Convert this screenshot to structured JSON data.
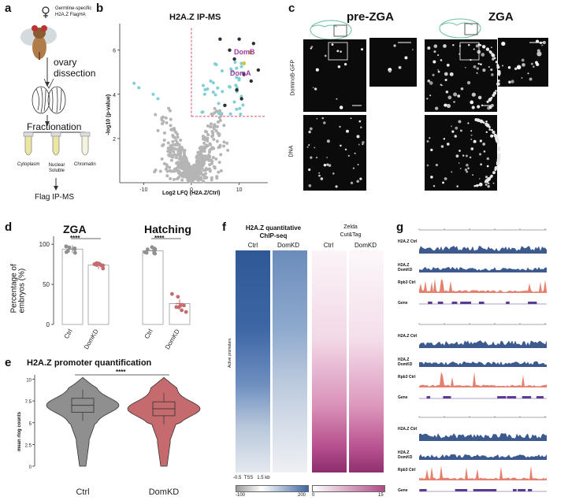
{
  "panels": {
    "a": {
      "label": "a",
      "fly_note_line1": "Germline-specific",
      "fly_note_line2": "H2A.Z FlagHA",
      "step1_line1": "ovary",
      "step1_line2": "dissection",
      "step2": "Fractionation",
      "tube1": "Cytoplasm",
      "tube2_line1": "Nuclear",
      "tube2_line2": "Soluble",
      "tube3": "Chromatin",
      "step3": "Flag IP-MS"
    },
    "b": {
      "label": "b",
      "title": "H2A.Z IP-MS",
      "ylabel": "-log10 (p-value)",
      "xlabel": "Log2 LFQ (H2A.Z/Ctrl)",
      "ann1": "DomB",
      "ann2": "DomA"
    },
    "c": {
      "label": "c",
      "col1": "pre-ZGA",
      "col2": "ZGA",
      "row1": "DominoB-GFP",
      "row2": "DNA"
    },
    "d": {
      "label": "d",
      "group1": "ZGA",
      "group2": "Hatching",
      "sig1": "****",
      "sig2": "****",
      "ylabel_line1": "Percentage of",
      "ylabel_line2": "embryos (%)",
      "cats": [
        "Ctrl",
        "DomKD",
        "Ctrl",
        "DomKD"
      ]
    },
    "e": {
      "label": "e",
      "title": "H2A.Z promoter quantification",
      "sig": "****",
      "ylabel": "mean rlog counts",
      "cat1": "Ctrl",
      "cat2": "DomKD"
    },
    "f": {
      "label": "f",
      "title1_line1": "H2A.Z quantitative",
      "title1_line2": "ChIP-seq",
      "title2_line1": "Zelda",
      "title2_line2": "Cut&Tag",
      "col1": "Ctrl",
      "col2": "DomKD",
      "col3": "Ctrl",
      "col4": "DomKD",
      "rowlabel": "Active promoters",
      "xaxis": "-0.5  TSS   1.5 kb",
      "cbar1_min": "-100",
      "cbar1_max": "200",
      "cbar2_min": "0",
      "cbar2_max": "15"
    },
    "g": {
      "label": "g",
      "tracks": [
        "H2A.Z Ctrl",
        "H2A.Z DomKD",
        "Rpb3 Ctrl",
        "Gene"
      ]
    }
  },
  "colors": {
    "ctrl_gray": "#8f8f8f",
    "domkd_red": "#c56a6d",
    "accent_purple": "#9b3a9e",
    "heat_blue": "#3a64a0",
    "heat_magenta": "#b04a86",
    "track_blue": "#3d5a8f",
    "track_salmon": "#e6806e",
    "gene_purple": "#5a3b93",
    "cyan_point": "#7fd0d2",
    "fdr_line": "#d63a50"
  },
  "chart_data": [
    {
      "type": "scatter",
      "panel": "b",
      "title": "H2A.Z IP-MS",
      "xlabel": "Log2 LFQ (H2A.Z/Ctrl)",
      "ylabel": "-log10 (p-value)",
      "xticks": [
        -10,
        0,
        10
      ],
      "yticks": [
        2,
        4,
        6
      ],
      "xlim": [
        -15,
        16
      ],
      "ylim": [
        0,
        7.2
      ],
      "annotations": [
        {
          "text": "DomB",
          "x": 12.3,
          "y": 5.9
        },
        {
          "text": "DomA",
          "x": 11.0,
          "y": 5.4
        }
      ]
    },
    {
      "type": "bar",
      "panel": "d",
      "categories": [
        "Ctrl",
        "DomKD",
        "Ctrl",
        "DomKD"
      ],
      "values": [
        94,
        74,
        92,
        26
      ],
      "yticks": [
        "0",
        "50",
        "100"
      ],
      "ylim": [
        0,
        110
      ]
    },
    {
      "type": "violin",
      "panel": "e",
      "title": "H2A.Z promoter quantification",
      "ylabel": "mean rlog counts",
      "categories": [
        "Ctrl",
        "DomKD"
      ],
      "medians": [
        7.0,
        6.6
      ],
      "yticks": [
        "0",
        "2.5",
        "5",
        "7.5",
        "10"
      ],
      "ylim": [
        0,
        10.5
      ]
    }
  ]
}
